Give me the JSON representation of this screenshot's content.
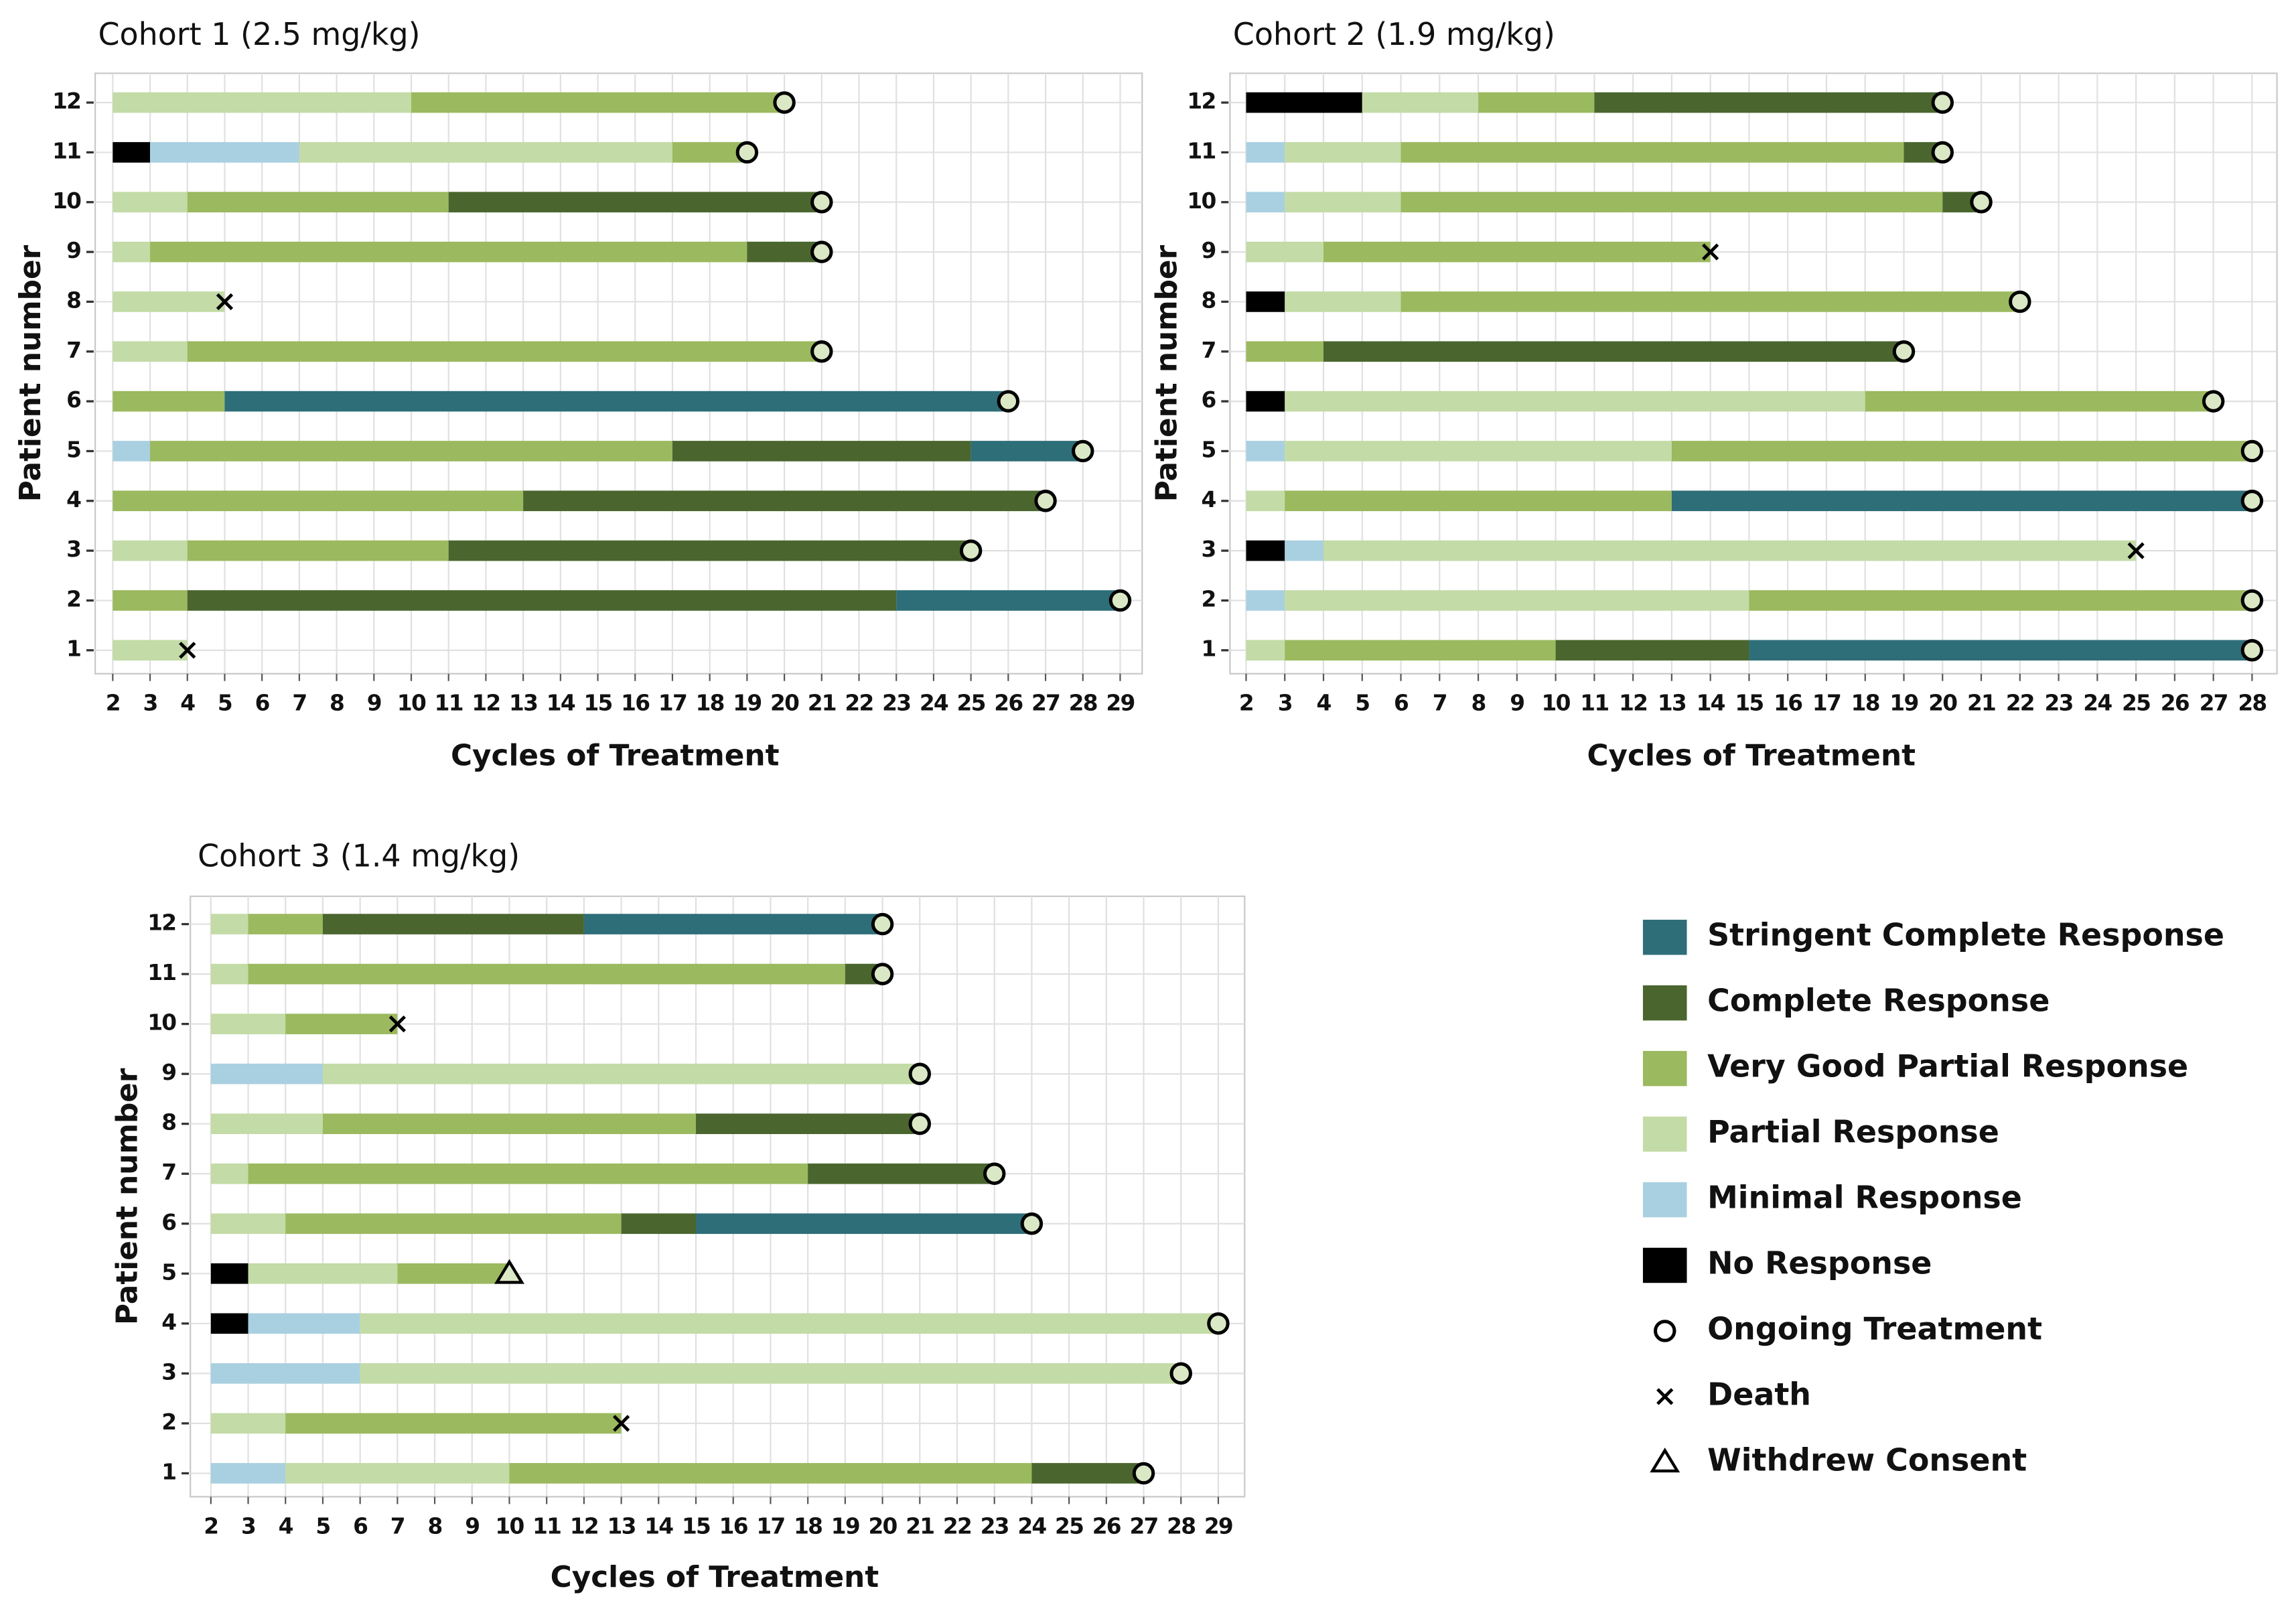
{
  "chart_data": [
    {
      "type": "swimmer",
      "title": "Cohort 1 (2.5 mg/kg)",
      "xlabel": "Cycles of Treatment",
      "ylabel": "Patient number",
      "categories": [
        1,
        2,
        3,
        4,
        5,
        6,
        7,
        8,
        9,
        10,
        11,
        12
      ],
      "xlim": [
        2,
        29
      ],
      "xticks": [
        2,
        3,
        4,
        5,
        6,
        7,
        8,
        9,
        10,
        11,
        12,
        13,
        14,
        15,
        16,
        17,
        18,
        19,
        20,
        21,
        22,
        23,
        24,
        25,
        26,
        27,
        28,
        29
      ],
      "grid": true,
      "series": [
        {
          "name": "No Response",
          "color": "#000000",
          "values": [
            null,
            null,
            null,
            null,
            null,
            null,
            null,
            null,
            null,
            null,
            1,
            null
          ]
        },
        {
          "name": "Minimal Response",
          "color": "#a9d0e0",
          "values": [
            null,
            null,
            null,
            null,
            1,
            null,
            null,
            null,
            null,
            null,
            4,
            null
          ]
        },
        {
          "name": "Partial Response",
          "color": "#c3dba6",
          "values": [
            2,
            null,
            2,
            null,
            null,
            null,
            2,
            3,
            1,
            2,
            10,
            8
          ]
        },
        {
          "name": "Very Good Partial Response",
          "color": "#9bb95e",
          "values": [
            null,
            2,
            7,
            11,
            14,
            3,
            17,
            null,
            16,
            7,
            2,
            10
          ]
        },
        {
          "name": "Complete Response",
          "color": "#4a662e",
          "values": [
            null,
            19,
            14,
            14,
            8,
            null,
            null,
            null,
            2,
            10,
            null,
            null
          ]
        },
        {
          "name": "Stringent Complete Response",
          "color": "#2e6e78",
          "values": [
            null,
            6,
            null,
            null,
            3,
            21,
            null,
            null,
            null,
            null,
            null,
            null
          ]
        }
      ],
      "markers": [
        {
          "name": "Ongoing Treatment",
          "symbol": "circle",
          "values": [
            null,
            29,
            25,
            27,
            28,
            26,
            21,
            null,
            21,
            21,
            19,
            20
          ]
        },
        {
          "name": "Death",
          "symbol": "cross",
          "values": [
            4,
            null,
            null,
            null,
            null,
            null,
            null,
            5,
            null,
            null,
            null,
            null
          ]
        },
        {
          "name": "Withdrew Consent",
          "symbol": "triangle",
          "values": [
            null,
            null,
            null,
            null,
            null,
            null,
            null,
            null,
            null,
            null,
            null,
            null
          ]
        }
      ]
    },
    {
      "type": "swimmer",
      "title": "Cohort 2 (1.9 mg/kg)",
      "xlabel": "Cycles of Treatment",
      "ylabel": "Patient number",
      "categories": [
        1,
        2,
        3,
        4,
        5,
        6,
        7,
        8,
        9,
        10,
        11,
        12
      ],
      "xlim": [
        2,
        28
      ],
      "xticks": [
        2,
        3,
        4,
        5,
        6,
        7,
        8,
        9,
        10,
        11,
        12,
        13,
        14,
        15,
        16,
        17,
        18,
        19,
        20,
        21,
        22,
        23,
        24,
        25,
        26,
        27,
        28
      ],
      "grid": true,
      "series": [
        {
          "name": "No Response",
          "color": "#000000",
          "values": [
            null,
            null,
            1,
            null,
            null,
            1,
            null,
            1,
            null,
            null,
            null,
            3
          ]
        },
        {
          "name": "Minimal Response",
          "color": "#a9d0e0",
          "values": [
            null,
            1,
            1,
            null,
            1,
            null,
            null,
            null,
            null,
            1,
            1,
            null
          ]
        },
        {
          "name": "Partial Response",
          "color": "#c3dba6",
          "values": [
            1,
            12,
            21,
            1,
            10,
            15,
            null,
            3,
            2,
            3,
            3,
            3
          ]
        },
        {
          "name": "Very Good Partial Response",
          "color": "#9bb95e",
          "values": [
            7,
            13,
            null,
            10,
            15,
            9,
            2,
            16,
            10,
            14,
            13,
            3
          ]
        },
        {
          "name": "Complete Response",
          "color": "#4a662e",
          "values": [
            5,
            null,
            null,
            null,
            null,
            null,
            15,
            null,
            null,
            1,
            1,
            9
          ]
        },
        {
          "name": "Stringent Complete Response",
          "color": "#2e6e78",
          "values": [
            13,
            null,
            null,
            15,
            null,
            null,
            null,
            null,
            null,
            null,
            null,
            null
          ]
        }
      ],
      "markers": [
        {
          "name": "Ongoing Treatment",
          "symbol": "circle",
          "values": [
            28,
            28,
            null,
            28,
            28,
            27,
            19,
            22,
            null,
            21,
            20,
            20
          ]
        },
        {
          "name": "Death",
          "symbol": "cross",
          "values": [
            null,
            null,
            25,
            null,
            null,
            null,
            null,
            null,
            14,
            null,
            null,
            null
          ]
        }
      ]
    },
    {
      "type": "swimmer",
      "title": "Cohort 3 (1.4 mg/kg)",
      "xlabel": "Cycles of Treatment",
      "ylabel": "Patient number",
      "categories": [
        1,
        2,
        3,
        4,
        5,
        6,
        7,
        8,
        9,
        10,
        11,
        12
      ],
      "xlim": [
        2,
        29
      ],
      "xticks": [
        2,
        3,
        4,
        5,
        6,
        7,
        8,
        9,
        10,
        11,
        12,
        13,
        14,
        15,
        16,
        17,
        18,
        19,
        20,
        21,
        22,
        23,
        24,
        25,
        26,
        27,
        28,
        29
      ],
      "grid": true,
      "series": [
        {
          "name": "No Response",
          "color": "#000000",
          "values": [
            null,
            null,
            null,
            1,
            1,
            null,
            null,
            null,
            null,
            null,
            null,
            null
          ]
        },
        {
          "name": "Minimal Response",
          "color": "#a9d0e0",
          "values": [
            2,
            null,
            4,
            3,
            null,
            null,
            null,
            null,
            3,
            null,
            null,
            null
          ]
        },
        {
          "name": "Partial Response",
          "color": "#c3dba6",
          "values": [
            6,
            2,
            22,
            23,
            4,
            2,
            1,
            3,
            16,
            2,
            1,
            1
          ]
        },
        {
          "name": "Very Good Partial Response",
          "color": "#9bb95e",
          "values": [
            14,
            9,
            null,
            null,
            3,
            9,
            15,
            10,
            null,
            3,
            16,
            2
          ]
        },
        {
          "name": "Complete Response",
          "color": "#4a662e",
          "values": [
            3,
            null,
            null,
            null,
            null,
            2,
            5,
            6,
            null,
            null,
            1,
            7
          ]
        },
        {
          "name": "Stringent Complete Response",
          "color": "#2e6e78",
          "values": [
            null,
            null,
            null,
            null,
            null,
            9,
            null,
            null,
            null,
            null,
            null,
            8
          ]
        }
      ],
      "markers": [
        {
          "name": "Ongoing Treatment",
          "symbol": "circle",
          "values": [
            27,
            null,
            28,
            29,
            null,
            24,
            23,
            21,
            21,
            null,
            20,
            20
          ]
        },
        {
          "name": "Death",
          "symbol": "cross",
          "values": [
            null,
            13,
            null,
            null,
            null,
            null,
            null,
            null,
            null,
            7,
            null,
            null
          ]
        },
        {
          "name": "Withdrew Consent",
          "symbol": "triangle",
          "values": [
            null,
            null,
            null,
            null,
            10,
            null,
            null,
            null,
            null,
            null,
            null,
            null
          ]
        }
      ]
    }
  ]
}
